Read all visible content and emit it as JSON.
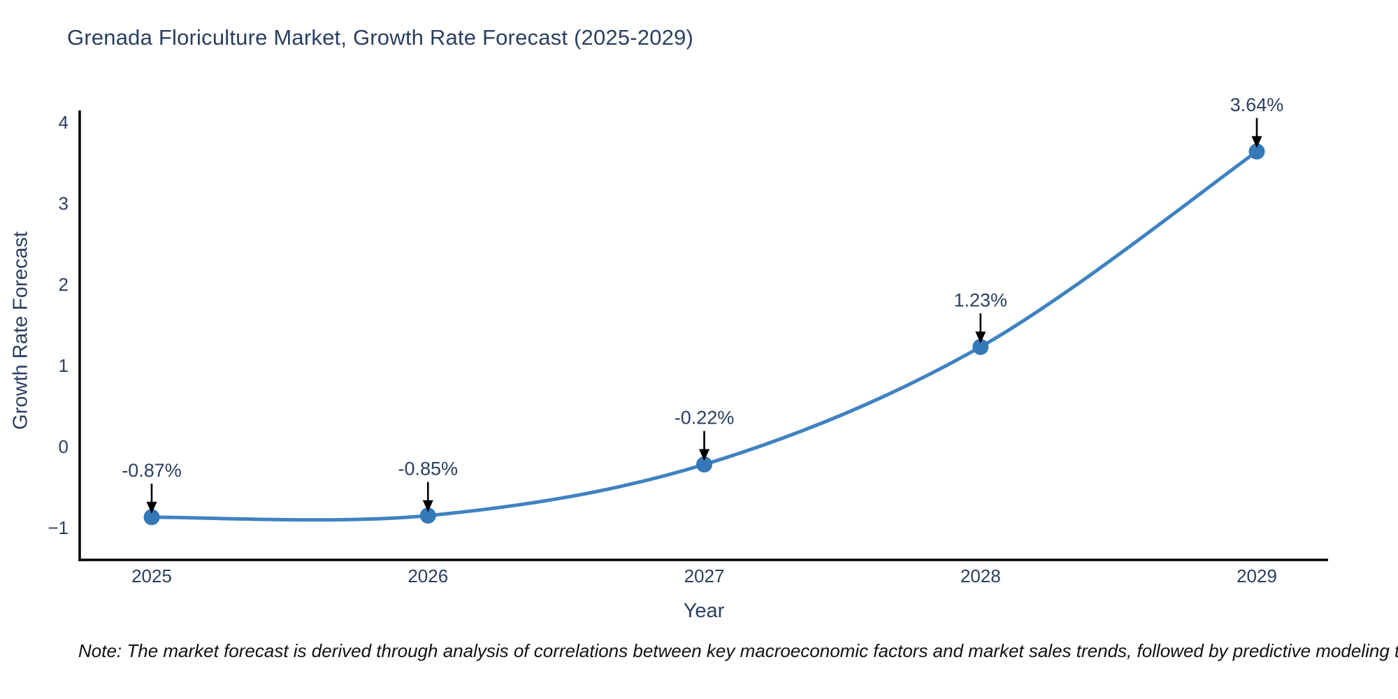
{
  "title": "Grenada Floriculture Market, Growth Rate Forecast (2025-2029)",
  "note": "Note: The market forecast is derived through analysis of correlations between key macroeconomic factors and market sales trends, followed by predictive modeling to project future sales",
  "chart_data": {
    "type": "line",
    "title": "Grenada Floriculture Market, Growth Rate Forecast (2025-2029)",
    "xlabel": "Year",
    "ylabel": "Growth Rate Forecast",
    "x": [
      2025,
      2026,
      2027,
      2028,
      2029
    ],
    "series": [
      {
        "name": "Growth Rate Forecast",
        "values": [
          -0.87,
          -0.85,
          -0.22,
          1.23,
          3.64
        ],
        "point_labels": [
          "-0.87%",
          "-0.85%",
          "-0.22%",
          "1.23%",
          "3.64%"
        ]
      }
    ],
    "yticks": [
      -1,
      0,
      1,
      2,
      3,
      4
    ],
    "ylim": [
      -1.39,
      4.15
    ],
    "xlim": [
      2024.74,
      2029.26
    ],
    "grid": false,
    "legend": "none",
    "line_shape": "spline",
    "annotation_arrows": true,
    "colors": {
      "line": "#3f82c1",
      "marker": "#3478b8",
      "axis": "#000000",
      "tick_text": "#2a3f5f",
      "annotation_text": "#2a3f5f",
      "title_text": "#2a3f5f",
      "note_text": "#111111",
      "background": "#ffffff"
    }
  }
}
